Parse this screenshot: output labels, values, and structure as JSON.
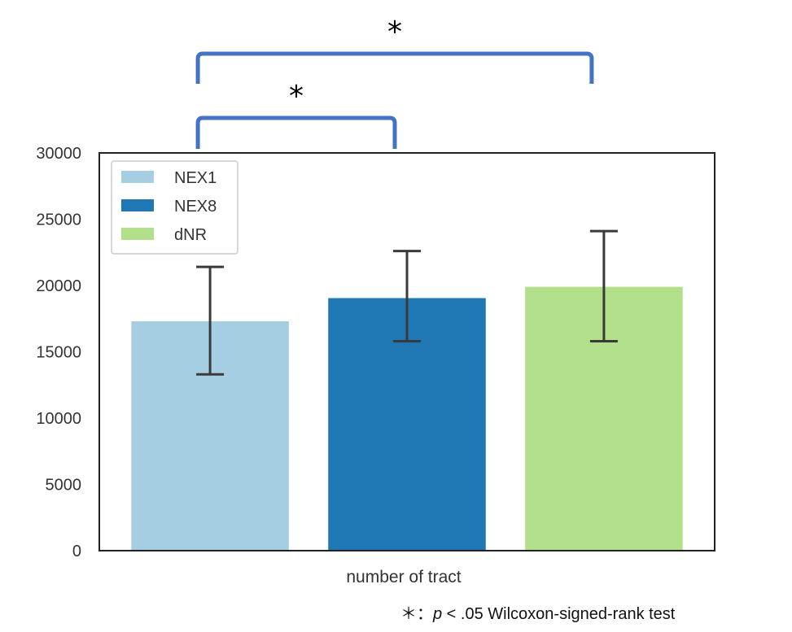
{
  "chart_data": {
    "type": "bar",
    "categories": [
      "NEX1",
      "NEX8",
      "dNR"
    ],
    "values": [
      17300,
      19050,
      19900
    ],
    "error": [
      {
        "low": 13300,
        "high": 21400
      },
      {
        "low": 15800,
        "high": 22600
      },
      {
        "low": 15800,
        "high": 24100
      }
    ],
    "colors": [
      "#a6cee3",
      "#1f78b4",
      "#b2df8a"
    ],
    "xlabel": "number of tract",
    "ylabel": "",
    "ylim": [
      0,
      30000
    ],
    "yticks": [
      "0",
      "5000",
      "10000",
      "15000",
      "20000",
      "25000",
      "30000"
    ],
    "legend": {
      "placement": "upper-left",
      "entries": [
        "NEX1",
        "NEX8",
        "dNR"
      ]
    },
    "grid": false,
    "significance": [
      {
        "pair": [
          "NEX1",
          "NEX8"
        ],
        "marker": "*"
      },
      {
        "pair": [
          "NEX1",
          "dNR"
        ],
        "marker": "*"
      }
    ],
    "bracket_color": "#4472c4"
  },
  "footnote": {
    "marker": "＊：",
    "p_symbol": "p",
    "text": " < .05 Wilcoxon-signed-rank test"
  }
}
